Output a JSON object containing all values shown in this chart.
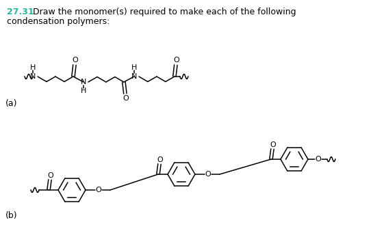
{
  "title_number": "27.31",
  "title_text": "Draw the monomer(s) required to make each of the following",
  "title_text2": "condensation polymers:",
  "title_color": "#2bb5a0",
  "bg_color": "#ffffff",
  "label_a": "(a)",
  "label_b": "(b)",
  "figsize": [
    5.64,
    3.38
  ],
  "dpi": 100
}
